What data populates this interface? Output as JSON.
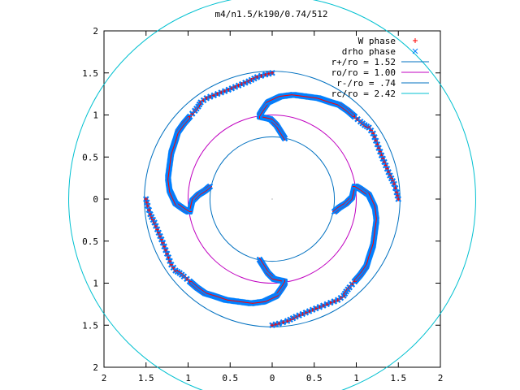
{
  "chart_data": {
    "type": "scatter",
    "title": "m4/n1.5/k190/0.74/512",
    "xlim": [
      -2,
      2
    ],
    "ylim": [
      -2,
      2
    ],
    "x_ticks": [
      -2,
      -1.5,
      -1,
      -0.5,
      0,
      0.5,
      1,
      1.5,
      2
    ],
    "y_ticks": [
      2,
      1.5,
      1,
      0.5,
      0,
      -0.5,
      -1,
      -1.5,
      -2
    ],
    "x_tick_labels": [
      "2",
      "1.5",
      "1",
      "0.5",
      "0",
      "0.5",
      "1",
      "1.5",
      "2"
    ],
    "y_tick_labels": [
      "2",
      "1.5",
      "1",
      "0.5",
      "0",
      "0.5",
      "1",
      "1.5",
      "2"
    ],
    "grid": false,
    "legend_position": "top-right",
    "series": [
      {
        "name": "W phase",
        "kind": "points",
        "marker": "plus",
        "color": "#ff0000"
      },
      {
        "name": "drho phase",
        "kind": "points",
        "marker": "x",
        "color": "#0080ff"
      },
      {
        "name": "r+/ro = 1.52",
        "kind": "circle",
        "radius": 1.52,
        "color": "#0070c0"
      },
      {
        "name": "ro/ro = 1.00",
        "kind": "circle",
        "radius": 1.0,
        "color": "#c000c0"
      },
      {
        "name": "r-/ro = .74",
        "kind": "circle",
        "radius": 0.74,
        "color": "#0070c0"
      },
      {
        "name": "rc/ro = 2.42",
        "kind": "circle",
        "radius": 2.42,
        "color": "#00c0d0"
      }
    ],
    "phase_arms": [
      [
        [
          0.15,
          0.72
        ],
        [
          0.1,
          0.8
        ],
        [
          0.05,
          0.88
        ],
        [
          -0.02,
          0.95
        ],
        [
          -0.15,
          0.98
        ],
        [
          -0.15,
          1.0
        ],
        [
          -0.12,
          1.05
        ],
        [
          -0.05,
          1.15
        ],
        [
          0.1,
          1.22
        ],
        [
          0.25,
          1.24
        ],
        [
          0.4,
          1.22
        ],
        [
          0.55,
          1.2
        ],
        [
          0.7,
          1.15
        ],
        [
          0.8,
          1.12
        ],
        [
          0.9,
          1.05
        ],
        [
          0.98,
          0.98
        ],
        [
          1.05,
          0.92
        ],
        [
          1.1,
          0.88
        ],
        [
          1.15,
          0.85
        ],
        [
          1.2,
          0.78
        ],
        [
          1.25,
          0.65
        ],
        [
          1.3,
          0.52
        ],
        [
          1.35,
          0.4
        ],
        [
          1.4,
          0.28
        ],
        [
          1.45,
          0.18
        ],
        [
          1.48,
          0.08
        ],
        [
          1.5,
          0
        ]
      ],
      [
        [
          0.74,
          -0.15
        ],
        [
          0.8,
          -0.1
        ],
        [
          0.88,
          -0.05
        ],
        [
          0.95,
          0.02
        ],
        [
          0.98,
          0.15
        ],
        [
          1.0,
          0.15
        ],
        [
          1.05,
          0.12
        ],
        [
          1.15,
          0.05
        ],
        [
          1.22,
          -0.1
        ],
        [
          1.24,
          -0.25
        ],
        [
          1.22,
          -0.4
        ],
        [
          1.2,
          -0.55
        ],
        [
          1.15,
          -0.7
        ],
        [
          1.12,
          -0.8
        ],
        [
          1.05,
          -0.9
        ],
        [
          0.98,
          -0.98
        ],
        [
          0.92,
          -1.05
        ],
        [
          0.88,
          -1.1
        ],
        [
          0.85,
          -1.15
        ],
        [
          0.78,
          -1.2
        ],
        [
          0.65,
          -1.25
        ],
        [
          0.52,
          -1.3
        ],
        [
          0.4,
          -1.35
        ],
        [
          0.28,
          -1.4
        ],
        [
          0.18,
          -1.45
        ],
        [
          0.08,
          -1.48
        ],
        [
          0,
          -1.5
        ]
      ],
      [
        [
          -0.15,
          -0.72
        ],
        [
          -0.1,
          -0.8
        ],
        [
          -0.05,
          -0.88
        ],
        [
          0.02,
          -0.95
        ],
        [
          0.15,
          -0.98
        ],
        [
          0.15,
          -1.0
        ],
        [
          0.12,
          -1.05
        ],
        [
          0.05,
          -1.15
        ],
        [
          -0.1,
          -1.22
        ],
        [
          -0.25,
          -1.24
        ],
        [
          -0.4,
          -1.22
        ],
        [
          -0.55,
          -1.2
        ],
        [
          -0.7,
          -1.15
        ],
        [
          -0.8,
          -1.12
        ],
        [
          -0.9,
          -1.05
        ],
        [
          -0.98,
          -0.98
        ],
        [
          -1.05,
          -0.92
        ],
        [
          -1.1,
          -0.88
        ],
        [
          -1.15,
          -0.85
        ],
        [
          -1.2,
          -0.78
        ],
        [
          -1.25,
          -0.65
        ],
        [
          -1.3,
          -0.52
        ],
        [
          -1.35,
          -0.4
        ],
        [
          -1.4,
          -0.28
        ],
        [
          -1.45,
          -0.18
        ],
        [
          -1.48,
          -0.08
        ],
        [
          -1.5,
          0
        ]
      ],
      [
        [
          -0.74,
          0.15
        ],
        [
          -0.8,
          0.1
        ],
        [
          -0.88,
          0.05
        ],
        [
          -0.95,
          -0.02
        ],
        [
          -0.98,
          -0.15
        ],
        [
          -1.0,
          -0.15
        ],
        [
          -1.05,
          -0.12
        ],
        [
          -1.15,
          -0.05
        ],
        [
          -1.22,
          0.1
        ],
        [
          -1.24,
          0.25
        ],
        [
          -1.22,
          0.4
        ],
        [
          -1.2,
          0.55
        ],
        [
          -1.15,
          0.7
        ],
        [
          -1.12,
          0.8
        ],
        [
          -1.05,
          0.9
        ],
        [
          -0.98,
          0.98
        ],
        [
          -0.92,
          1.05
        ],
        [
          -0.88,
          1.1
        ],
        [
          -0.85,
          1.15
        ],
        [
          -0.78,
          1.2
        ],
        [
          -0.65,
          1.25
        ],
        [
          -0.52,
          1.3
        ],
        [
          -0.4,
          1.35
        ],
        [
          -0.28,
          1.4
        ],
        [
          -0.18,
          1.45
        ],
        [
          -0.08,
          1.48
        ],
        [
          0,
          1.5
        ]
      ]
    ]
  }
}
